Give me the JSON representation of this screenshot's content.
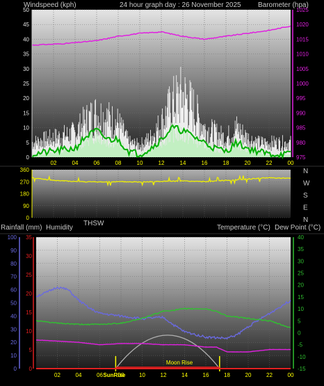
{
  "header": {
    "wind_label": "Windspeed (kph)",
    "title": "24 hour graph day : 26 November 2025",
    "baro_label": "Barometer (hpa)"
  },
  "middle": {
    "thsw_label": "THSW"
  },
  "bottom_header": {
    "rain_label": "Rainfall (mm)",
    "humidity_label": "Humidity",
    "temp_label": "Temperature (°C)",
    "dew_label": "Dew Point (°C)"
  },
  "annotations": {
    "sunrise": "SunRise",
    "moonrise": "Moon Rise"
  },
  "colors": {
    "barometer": "#e020e0",
    "wind_gust": "#ffffff",
    "wind_avg": "#00b000",
    "wind_dir": "#f0f000",
    "humidity": "#6a6ae0",
    "temperature": "#30c030",
    "dewpoint": "#e020e0",
    "rain": "#e02020",
    "sun_arc": "#b0b0b0",
    "axis_time": "#ffff00"
  },
  "chart_data": [
    {
      "type": "line",
      "name": "wind-barometer",
      "x_ticks": [
        "02",
        "04",
        "06",
        "08",
        "10",
        "12",
        "14",
        "16",
        "18",
        "20",
        "22",
        "00"
      ],
      "ylim_wind": [
        0,
        50
      ],
      "wind_ticks": [
        "0",
        "5",
        "10",
        "15",
        "20",
        "25",
        "30",
        "35",
        "40",
        "45",
        "50"
      ],
      "ylim_baro": [
        975,
        1025
      ],
      "baro_ticks": [
        "975",
        "980",
        "985",
        "990",
        "995",
        "1000",
        "1005",
        "1010",
        "1015",
        "1020",
        "1025"
      ],
      "series": [
        {
          "key": "barometer",
          "x": [
            0,
            3,
            6,
            8,
            10,
            12,
            14,
            16,
            18,
            20,
            22,
            24
          ],
          "values": [
            1013,
            1013.5,
            1014.5,
            1016,
            1017,
            1017.5,
            1016,
            1015,
            1016,
            1017,
            1018,
            1019.5
          ]
        },
        {
          "key": "wind_gust",
          "x": [
            0,
            2,
            4,
            5,
            6,
            7,
            8,
            9,
            10,
            11,
            12,
            13,
            14,
            15,
            16,
            17,
            18,
            19,
            20,
            21,
            22,
            23,
            24
          ],
          "values": [
            6,
            8,
            10,
            15,
            18,
            16,
            14,
            6,
            5,
            8,
            14,
            22,
            26,
            20,
            12,
            10,
            8,
            12,
            8,
            6,
            6,
            6,
            6
          ]
        },
        {
          "key": "wind_avg",
          "x": [
            0,
            2,
            4,
            5,
            6,
            7,
            8,
            9,
            10,
            11,
            12,
            13,
            14,
            15,
            16,
            17,
            18,
            19,
            20,
            21,
            22,
            23,
            24
          ],
          "values": [
            1,
            2,
            3,
            7,
            9,
            6,
            6,
            2,
            1,
            3,
            6,
            10,
            9,
            7,
            5,
            3,
            2,
            5,
            3,
            2,
            1,
            1,
            1
          ]
        }
      ]
    },
    {
      "type": "line",
      "name": "wind-direction",
      "ylim": [
        0,
        360
      ],
      "y_ticks": [
        "0",
        "90",
        "180",
        "270",
        "360"
      ],
      "compass": [
        "N",
        "W",
        "S",
        "E",
        "N"
      ],
      "series": [
        {
          "key": "wind_dir",
          "x": [
            0,
            2,
            4,
            6,
            8,
            10,
            12,
            14,
            16,
            18,
            20,
            22,
            24
          ],
          "values": [
            300,
            280,
            272,
            268,
            270,
            268,
            272,
            275,
            270,
            280,
            290,
            300,
            295
          ]
        }
      ]
    },
    {
      "type": "line",
      "name": "temp-humidity",
      "x_ticks": [
        "02",
        "04",
        "06",
        "08",
        "10",
        "12",
        "14",
        "16",
        "18",
        "20",
        "22",
        "00"
      ],
      "ylim_humidity": [
        0,
        100
      ],
      "humidity_ticks": [
        "0",
        "10",
        "20",
        "30",
        "40",
        "50",
        "60",
        "70",
        "80",
        "90",
        "100"
      ],
      "ylim_rain": [
        0,
        35
      ],
      "rain_ticks": [
        "0",
        "5",
        "10",
        "15",
        "20",
        "25",
        "30",
        "35"
      ],
      "ylim_temp": [
        -15,
        40
      ],
      "temp_ticks": [
        "-15",
        "-10",
        "-5",
        "0",
        "5",
        "10",
        "15",
        "20",
        "25",
        "30",
        "35",
        "40"
      ],
      "series": [
        {
          "key": "humidity",
          "x": [
            0,
            1,
            2,
            3,
            4,
            5,
            6,
            8,
            10,
            12,
            13,
            14,
            16,
            18,
            19,
            20,
            22,
            24
          ],
          "values": [
            55,
            58,
            62,
            60,
            52,
            46,
            42,
            40,
            38,
            39,
            33,
            28,
            24,
            23,
            26,
            32,
            42,
            52
          ]
        },
        {
          "key": "temperature",
          "x": [
            0,
            2,
            4,
            6,
            8,
            10,
            12,
            14,
            16,
            17,
            18,
            20,
            22,
            24
          ],
          "values": [
            5,
            4,
            3.5,
            3.5,
            4,
            6,
            9,
            10,
            10,
            9,
            7,
            6,
            5,
            2
          ]
        },
        {
          "key": "dewpoint",
          "x": [
            0,
            2,
            4,
            6,
            8,
            10,
            12,
            14,
            16,
            17,
            18,
            20,
            22,
            24
          ],
          "values": [
            -3,
            -3.5,
            -4,
            -5,
            -4.5,
            -4.5,
            -5,
            -5,
            -6,
            -6,
            -8,
            -8,
            -7,
            -7
          ]
        },
        {
          "key": "rain",
          "x": [
            0,
            24
          ],
          "values": [
            0,
            0
          ]
        }
      ],
      "sunrise_hour": 7.5,
      "sunset_hour": 17.3,
      "sun_peak_hour": 12.4,
      "sun_peak_temp": -1,
      "moonrise_label_hour": 13.7
    }
  ]
}
